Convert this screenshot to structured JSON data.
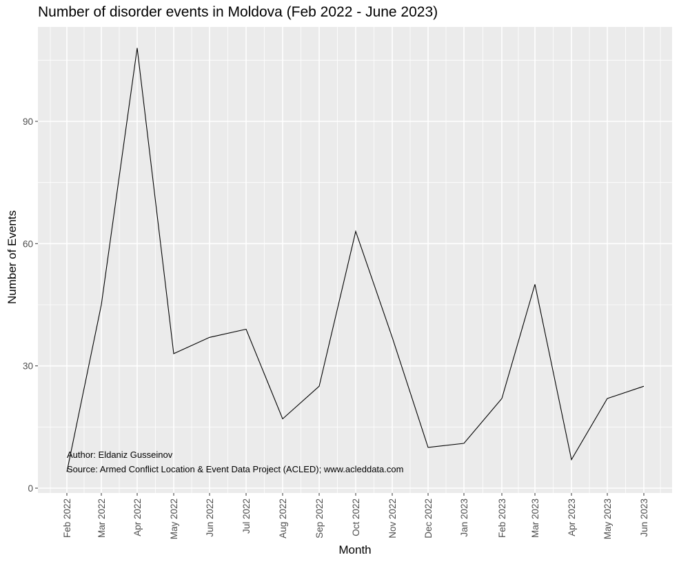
{
  "chart_data": {
    "type": "line",
    "title": "Number of disorder events in Moldova (Feb 2022 - June 2023)",
    "xlabel": "Month",
    "ylabel": "Number of Events",
    "categories": [
      "Feb 2022",
      "Mar 2022",
      "Apr 2022",
      "May 2022",
      "Jun 2022",
      "Jul 2022",
      "Aug 2022",
      "Sep 2022",
      "Oct 2022",
      "Nov 2022",
      "Dec 2022",
      "Jan 2023",
      "Feb 2023",
      "Mar 2023",
      "Apr 2023",
      "May 2023",
      "Jun 2023"
    ],
    "values": [
      4,
      45,
      108,
      33,
      37,
      39,
      17,
      25,
      63,
      37,
      10,
      11,
      22,
      50,
      7,
      22,
      25
    ],
    "y_ticks": [
      0,
      30,
      60,
      90
    ],
    "ylim": [
      -1.5,
      113
    ],
    "grid": true,
    "line_color": "#000000",
    "panel_background": "#ebebeb",
    "grid_color": "#ffffff",
    "annotations": [
      "Author: Eldaniz Gusseinov",
      "Source: Armed Conflict Location & Event Data Project (ACLED); www.acleddata.com"
    ]
  }
}
